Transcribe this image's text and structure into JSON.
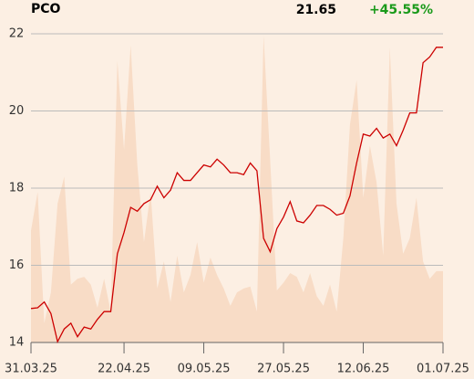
{
  "header": {
    "symbol": "PCO",
    "price": "21.65",
    "change": "+45.55%"
  },
  "chart_data": {
    "type": "line",
    "x": [
      0,
      1,
      2,
      3,
      4,
      5,
      6,
      7,
      8,
      9,
      10,
      11,
      12,
      13,
      14,
      15,
      16,
      17,
      18,
      19,
      20,
      21,
      22,
      23,
      24,
      25,
      26,
      27,
      28,
      29,
      30,
      31,
      32,
      33,
      34,
      35,
      36,
      37,
      38,
      39,
      40,
      41,
      42,
      43,
      44,
      45,
      46,
      47,
      48,
      49,
      50,
      51,
      52,
      53,
      54,
      55,
      56,
      57,
      58,
      59,
      60,
      61,
      62
    ],
    "xlim": [
      0,
      62
    ],
    "xticks": [
      {
        "value": 0,
        "label": "31.03.25"
      },
      {
        "value": 14,
        "label": "22.04.25"
      },
      {
        "value": 26,
        "label": "09.05.25"
      },
      {
        "value": 38,
        "label": "27.05.25"
      },
      {
        "value": 50,
        "label": "12.06.25"
      },
      {
        "value": 62,
        "label": "01.07.25"
      }
    ],
    "ylim": [
      14,
      22
    ],
    "yticks": [
      14,
      16,
      18,
      20,
      22
    ],
    "grid": true,
    "series": [
      {
        "color": "#cc0000",
        "values": [
          14.88,
          14.9,
          15.05,
          14.75,
          14.02,
          14.35,
          14.5,
          14.15,
          14.4,
          14.35,
          14.6,
          14.8,
          14.8,
          16.3,
          16.85,
          17.5,
          17.4,
          17.6,
          17.7,
          18.05,
          17.75,
          17.95,
          18.4,
          18.2,
          18.2,
          18.4,
          18.6,
          18.55,
          18.75,
          18.6,
          18.4,
          18.4,
          18.35,
          18.65,
          18.45,
          16.7,
          16.35,
          16.95,
          17.25,
          17.65,
          17.15,
          17.1,
          17.3,
          17.55,
          17.55,
          17.45,
          17.3,
          17.35,
          17.8,
          18.65,
          19.4,
          19.35,
          19.55,
          19.3,
          19.4,
          19.1,
          19.5,
          19.95,
          19.95,
          21.25,
          21.4,
          21.65,
          21.65
        ]
      },
      {
        "color": "#f8dcc6",
        "kind": "area",
        "values": [
          16.9,
          17.9,
          14.5,
          15.3,
          17.6,
          18.3,
          15.5,
          15.65,
          15.7,
          15.5,
          14.9,
          15.65,
          14.8,
          21.3,
          19.0,
          21.7,
          18.6,
          16.6,
          17.9,
          15.4,
          16.1,
          15.05,
          16.25,
          15.3,
          15.75,
          16.6,
          15.55,
          16.2,
          15.75,
          15.4,
          14.95,
          15.3,
          15.4,
          15.45,
          14.8,
          21.95,
          18.7,
          15.35,
          15.55,
          15.8,
          15.7,
          15.3,
          15.8,
          15.2,
          14.95,
          15.5,
          14.8,
          16.7,
          19.65,
          20.8,
          17.75,
          19.1,
          18.15,
          16.25,
          21.65,
          17.6,
          16.3,
          16.7,
          17.75,
          16.1,
          15.65,
          15.85,
          15.85
        ]
      }
    ]
  }
}
